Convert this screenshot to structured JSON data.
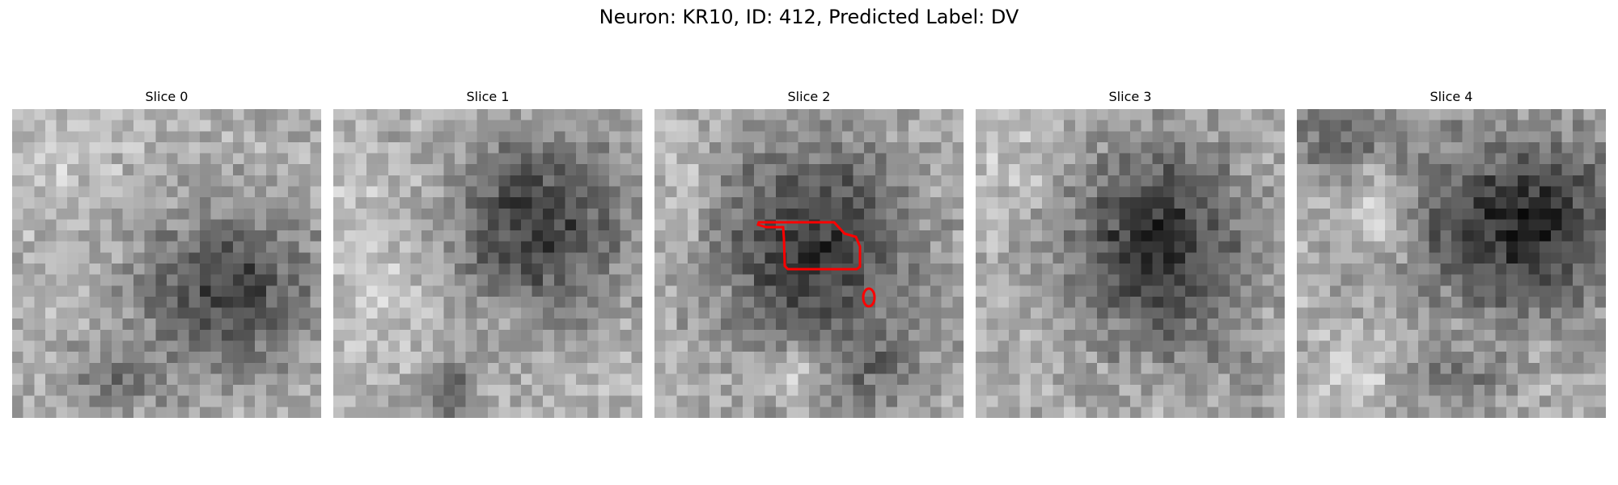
{
  "figure": {
    "title": "Neuron: KR10, ID: 412, Predicted Label: DV"
  },
  "slices": [
    {
      "label": "Slice 0"
    },
    {
      "label": "Slice 1"
    },
    {
      "label": "Slice 2"
    },
    {
      "label": "Slice 3"
    },
    {
      "label": "Slice 4"
    }
  ],
  "contour": {
    "slice": "Slice 2",
    "color": "#ff0000"
  },
  "image": {
    "colormap": "grayscale",
    "grid_cells": 28
  }
}
